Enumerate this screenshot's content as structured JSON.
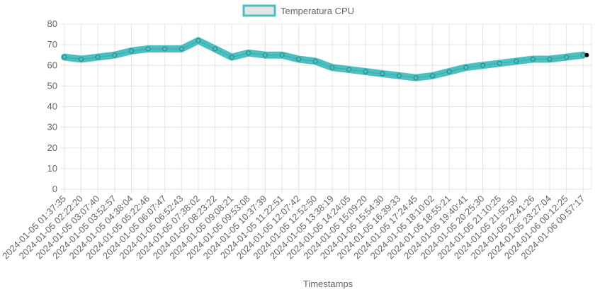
{
  "chart_data": {
    "type": "line",
    "title": "",
    "xlabel": "Timestamps",
    "ylabel": "",
    "ylim": [
      0,
      80
    ],
    "yticks": [
      0,
      10,
      20,
      30,
      40,
      50,
      60,
      70,
      80
    ],
    "grid": true,
    "legend_position": "top-center",
    "categories": [
      "2024-01-05 01:37:35",
      "2024-01-05 02:22:20",
      "2024-01-05 03:07:40",
      "2024-01-05 03:52:57",
      "2024-01-05 04:38:04",
      "2024-01-05 05:22:46",
      "2024-01-05 06:07:47",
      "2024-01-05 06:52:43",
      "2024-01-05 07:38:02",
      "2024-01-05 08:23:22",
      "2024-01-05 09:08:21",
      "2024-01-05 09:53:08",
      "2024-01-05 10:37:39",
      "2024-01-05 11:22:51",
      "2024-01-05 12:07:42",
      "2024-01-05 12:52:50",
      "2024-01-05 13:38:19",
      "2024-01-05 14:24:05",
      "2024-01-05 15:09:20",
      "2024-01-05 15:54:30",
      "2024-01-05 16:39:33",
      "2024-01-05 17:24:45",
      "2024-01-05 18:10:02",
      "2024-01-05 18:55:21",
      "2024-01-05 19:40:41",
      "2024-01-05 20:25:30",
      "2024-01-05 21:10:25",
      "2024-01-05 21:55:50",
      "2024-01-05 22:41:26",
      "2024-01-05 23:27:04",
      "2024-01-06 00:12:25",
      "2024-01-06 00:57:17"
    ],
    "series": [
      {
        "name": "Temperatura CPU",
        "color": "#4bc0c0",
        "values": [
          64,
          63,
          64,
          65,
          67,
          68,
          68,
          68,
          72,
          68,
          64,
          66,
          65,
          65,
          63,
          62,
          59,
          58,
          57,
          56,
          55,
          54,
          55,
          57,
          59,
          60,
          61,
          62,
          63,
          63,
          64,
          65
        ]
      }
    ]
  }
}
